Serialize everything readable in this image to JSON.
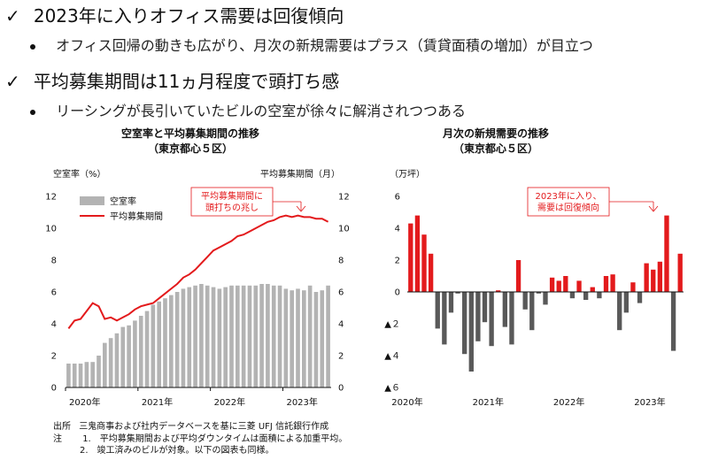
{
  "headline1": "2023年に入りオフィス需要は回復傾向",
  "bullet1": "オフィス回帰の動きも広がり、月次の新規需要はプラス（賃貸面積の増加）が目立つ",
  "headline2": "平均募集期間は11ヵ月程度で頭打ち感",
  "bullet2": "リーシングが長引いていたビルの空室が徐々に解消されつつある",
  "check_mark": "✓",
  "accent_red": "#e31a1c",
  "bar_gray": "#b3b3b3",
  "chart_data": [
    {
      "type": "bar+line",
      "title": "空室率と平均募集期間の推移",
      "subtitle": "（東京都心５区）",
      "ylabel_left": "空室率（%）",
      "ylabel_right": "平均募集期間（月）",
      "ylim": [
        0,
        12
      ],
      "yticks": [
        "0",
        "2",
        "4",
        "6",
        "8",
        "10",
        "12"
      ],
      "xtick_labels": [
        "2020年",
        "2021年",
        "2022年",
        "2023年"
      ],
      "xtick_index": [
        0,
        12,
        24,
        36
      ],
      "legend": [
        "空室率",
        "平均募集期間"
      ],
      "annotation": "平均募集期間に\n頭打ちの兆し",
      "series": [
        {
          "name": "空室率",
          "type": "bar",
          "values": [
            1.5,
            1.5,
            1.5,
            1.6,
            1.6,
            2.0,
            2.8,
            3.1,
            3.4,
            3.8,
            3.9,
            4.2,
            4.5,
            4.8,
            5.2,
            5.4,
            5.6,
            5.8,
            6.0,
            6.2,
            6.3,
            6.4,
            6.5,
            6.4,
            6.3,
            6.2,
            6.3,
            6.4,
            6.4,
            6.4,
            6.4,
            6.4,
            6.5,
            6.5,
            6.4,
            6.4,
            6.2,
            6.1,
            6.2,
            6.1,
            6.4,
            6.0,
            6.1,
            6.4
          ]
        },
        {
          "name": "平均募集期間",
          "type": "line",
          "values": [
            3.7,
            4.2,
            4.3,
            4.8,
            5.3,
            5.1,
            4.3,
            4.4,
            4.2,
            4.4,
            4.6,
            4.9,
            5.1,
            5.2,
            5.3,
            5.6,
            5.9,
            6.2,
            6.5,
            6.9,
            7.1,
            7.4,
            7.8,
            8.2,
            8.6,
            8.8,
            9.0,
            9.2,
            9.5,
            9.6,
            9.8,
            10.0,
            10.2,
            10.4,
            10.5,
            10.7,
            10.8,
            10.7,
            10.8,
            10.7,
            10.7,
            10.6,
            10.6,
            10.4
          ]
        }
      ]
    },
    {
      "type": "bar",
      "title": "月次の新規需要の推移",
      "subtitle": "（東京都心５区）",
      "ylabel": "（万坪）",
      "ylim": [
        -6,
        6
      ],
      "yticks": [
        "6",
        "4",
        "2",
        "0",
        "▲２",
        "▲４",
        "▲６"
      ],
      "xtick_labels": [
        "2020年",
        "2021年",
        "2022年",
        "2023年"
      ],
      "xtick_index": [
        0,
        12,
        24,
        36
      ],
      "annotation": "2023年に入り、\n需要は回復傾向",
      "values": [
        4.3,
        4.8,
        3.6,
        2.4,
        -2.3,
        -3.3,
        -1.3,
        -0.1,
        -3.9,
        -5.0,
        -3.1,
        -1.9,
        -3.4,
        0.1,
        -2.2,
        -3.3,
        2.0,
        -1.1,
        -2.4,
        -0.1,
        -0.8,
        0.9,
        0.7,
        1.0,
        -0.4,
        0.7,
        -0.5,
        0.3,
        -0.4,
        1.0,
        1.1,
        -2.4,
        -1.3,
        0.6,
        -0.7,
        1.8,
        1.4,
        1.9,
        4.8,
        -3.7,
        2.4
      ]
    }
  ],
  "source_label": "出所",
  "source_text": "三鬼商事および社内データベースを基に三菱 UFJ 信託銀行作成",
  "note_label": "注",
  "note1": "1.　平均募集期間および平均ダウンタイムは面積による加重平均。",
  "note2": "2.　竣工済みのビルが対象。以下の図表も同様。"
}
